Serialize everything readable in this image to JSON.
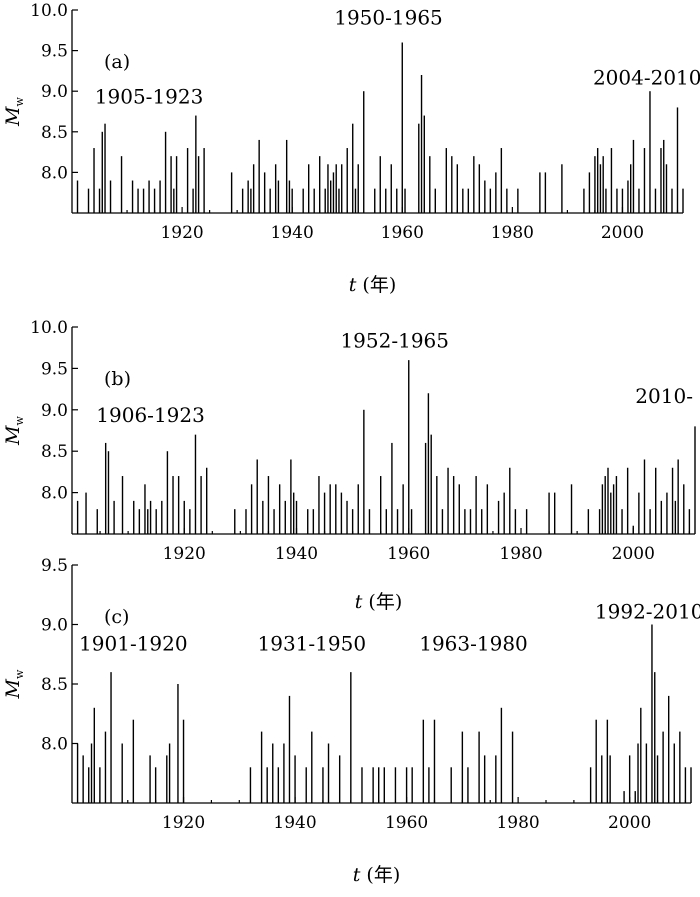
{
  "chart_data": [
    {
      "type": "bar",
      "panel_label": "(a)",
      "ylabel": "Mw",
      "ylabel_main": "M",
      "ylabel_sub": "w",
      "xlabel": "t (年)",
      "xlabel_var": "t",
      "xlabel_unit": " (年)",
      "xlim": [
        1900,
        2011
      ],
      "ylim": [
        7.5,
        10.0
      ],
      "x_ticks": [
        1920,
        1940,
        1960,
        1980,
        2000
      ],
      "y_ticks": [
        8.0,
        8.5,
        9.0,
        9.5,
        10.0
      ],
      "annotations": [
        {
          "text": "1905-1923",
          "x": 1914,
          "y": 8.85
        },
        {
          "text": "1950-1965",
          "x": 1957.5,
          "y": 9.82
        },
        {
          "text": "2004-2010",
          "x": 2004.5,
          "y": 9.08
        }
      ],
      "x": [
        1901,
        1903,
        1904,
        1905,
        1905.5,
        1906,
        1907,
        1909,
        1911,
        1912,
        1913,
        1914,
        1915,
        1916,
        1917,
        1918,
        1918.5,
        1919,
        1921,
        1922,
        1922.5,
        1923,
        1924,
        1929,
        1931,
        1932,
        1932.5,
        1933,
        1934,
        1935,
        1936,
        1937,
        1937.5,
        1939,
        1939.5,
        1940,
        1942,
        1943,
        1944,
        1945,
        1946,
        1946.5,
        1947,
        1947.5,
        1948,
        1948.5,
        1949,
        1950,
        1951,
        1951.5,
        1952,
        1953,
        1955,
        1956,
        1957,
        1958,
        1959,
        1960,
        1960.5,
        1963,
        1963.5,
        1964,
        1965,
        1966,
        1968,
        1969,
        1970,
        1971,
        1972,
        1973,
        1974,
        1975,
        1976,
        1977,
        1978,
        1979,
        1981,
        1985,
        1986,
        1989,
        1993,
        1994,
        1995,
        1995.5,
        1996,
        1996.5,
        1997,
        1998,
        1999,
        2000,
        2001,
        2001.5,
        2002,
        2003,
        2004,
        2005,
        2006,
        2007,
        2007.5,
        2008,
        2009,
        2010,
        2011
      ],
      "values": [
        7.9,
        7.8,
        8.3,
        7.8,
        8.5,
        8.6,
        7.9,
        8.2,
        7.9,
        7.8,
        7.8,
        7.9,
        7.8,
        7.9,
        8.5,
        8.2,
        7.8,
        8.2,
        8.3,
        7.8,
        8.7,
        8.2,
        8.3,
        8.0,
        7.8,
        7.9,
        7.8,
        8.1,
        8.4,
        8.0,
        7.8,
        8.1,
        7.9,
        8.4,
        7.9,
        7.8,
        7.8,
        8.1,
        7.8,
        8.2,
        7.8,
        8.1,
        7.9,
        8.0,
        8.1,
        7.8,
        8.1,
        8.3,
        8.6,
        7.8,
        8.1,
        9.0,
        7.8,
        8.2,
        7.8,
        8.1,
        7.8,
        9.6,
        7.8,
        8.6,
        9.2,
        8.7,
        8.2,
        7.8,
        8.3,
        8.2,
        8.1,
        7.8,
        7.8,
        8.2,
        8.1,
        7.9,
        7.8,
        8.0,
        8.3,
        7.8,
        7.8,
        8.0,
        8.0,
        8.1,
        7.8,
        8.0,
        8.2,
        8.3,
        8.1,
        8.2,
        7.8,
        8.3,
        7.8,
        7.8,
        7.9,
        8.1,
        8.4,
        7.8,
        8.3,
        9.0,
        7.8,
        8.3,
        8.4,
        8.1,
        7.8,
        8.8,
        7.8
      ]
    },
    {
      "type": "bar",
      "panel_label": "(b)",
      "ylabel": "Mw",
      "ylabel_main": "M",
      "ylabel_sub": "w",
      "xlabel": "t (年)",
      "xlabel_var": "t",
      "xlabel_unit": " (年)",
      "xlim": [
        1900,
        2011
      ],
      "ylim": [
        7.5,
        10.0
      ],
      "x_ticks": [
        1920,
        1940,
        1960,
        1980,
        2000
      ],
      "y_ticks": [
        8.0,
        8.5,
        9.0,
        9.5,
        10.0
      ],
      "annotations": [
        {
          "text": "1906-1923",
          "x": 1914,
          "y": 8.85
        },
        {
          "text": "1952-1965",
          "x": 1957.5,
          "y": 9.75
        },
        {
          "text": "2010-",
          "x": 2005.5,
          "y": 9.08
        }
      ],
      "x": [
        1901,
        1902.5,
        1904.5,
        1906,
        1906.5,
        1907.5,
        1909,
        1911,
        1912,
        1913,
        1913.5,
        1914,
        1915,
        1916,
        1917,
        1918,
        1919,
        1920,
        1921,
        1922,
        1923,
        1924,
        1929,
        1931,
        1932,
        1933,
        1934,
        1935,
        1936,
        1937,
        1938,
        1939,
        1939.5,
        1940,
        1942,
        1943,
        1944,
        1945,
        1946,
        1947,
        1948,
        1949,
        1950,
        1951,
        1952,
        1953,
        1955,
        1956,
        1957,
        1958,
        1959,
        1960,
        1960.5,
        1963,
        1963.5,
        1964,
        1965,
        1966,
        1967,
        1968,
        1969,
        1970,
        1971,
        1972,
        1973,
        1974,
        1976,
        1977,
        1978,
        1979,
        1981,
        1985,
        1986,
        1989,
        1992,
        1994,
        1994.5,
        1995,
        1995.5,
        1996,
        1996.5,
        1997,
        1998,
        1999,
        2000,
        2001,
        2002,
        2003,
        2004,
        2005,
        2006,
        2007,
        2007.5,
        2008,
        2009,
        2010,
        2011
      ],
      "values": [
        7.9,
        8.0,
        7.8,
        8.6,
        8.5,
        7.9,
        8.2,
        7.9,
        7.8,
        8.1,
        7.8,
        7.9,
        7.8,
        7.9,
        8.5,
        8.2,
        8.2,
        7.9,
        7.8,
        8.7,
        8.2,
        8.3,
        7.8,
        7.8,
        8.1,
        8.4,
        7.9,
        8.2,
        7.8,
        8.1,
        7.9,
        8.4,
        8.0,
        7.9,
        7.8,
        7.8,
        8.2,
        8.0,
        8.1,
        8.1,
        8.0,
        7.9,
        7.8,
        8.1,
        9.0,
        7.8,
        8.2,
        7.8,
        8.6,
        7.8,
        8.1,
        9.6,
        7.8,
        8.6,
        9.2,
        8.7,
        8.2,
        7.8,
        8.3,
        8.2,
        8.1,
        7.8,
        7.8,
        8.2,
        7.8,
        8.1,
        7.9,
        8.0,
        8.3,
        7.8,
        7.8,
        8.0,
        8.0,
        8.1,
        7.8,
        7.8,
        8.1,
        8.2,
        8.3,
        8.0,
        8.1,
        8.2,
        7.8,
        8.3,
        7.6,
        8.0,
        8.4,
        7.8,
        8.3,
        7.9,
        8.0,
        8.3,
        7.9,
        8.4,
        8.1,
        7.8,
        8.8
      ]
    },
    {
      "type": "bar",
      "panel_label": "(c)",
      "ylabel": "Mw",
      "ylabel_main": "M",
      "ylabel_sub": "w",
      "xlabel": "t (年)",
      "xlabel_var": "t",
      "xlabel_unit": " (年)",
      "xlim": [
        1900,
        2011
      ],
      "ylim": [
        7.5,
        9.5
      ],
      "x_ticks": [
        1920,
        1940,
        1960,
        1980,
        2000
      ],
      "y_ticks": [
        8.0,
        8.5,
        9.0,
        9.5
      ],
      "annotations": [
        {
          "text": "1901-1920",
          "x": 1911,
          "y": 8.78
        },
        {
          "text": "1931-1950",
          "x": 1943,
          "y": 8.78
        },
        {
          "text": "1963-1980",
          "x": 1972,
          "y": 8.78
        },
        {
          "text": "1992-2010",
          "x": 2003.5,
          "y": 9.05
        }
      ],
      "x": [
        1901,
        1902,
        1903,
        1903.5,
        1904,
        1905,
        1906,
        1907,
        1909,
        1911,
        1914,
        1915,
        1917,
        1917.5,
        1919,
        1920,
        1932,
        1934,
        1935,
        1936,
        1937,
        1938,
        1939,
        1940,
        1942,
        1943,
        1945,
        1946,
        1948,
        1950,
        1952,
        1954,
        1955,
        1956,
        1958,
        1960,
        1961,
        1963,
        1964,
        1965,
        1968,
        1970,
        1971,
        1973,
        1974,
        1976,
        1977,
        1979,
        1993,
        1994,
        1995,
        1996,
        1996.5,
        1999,
        2000,
        2001,
        2001.5,
        2002,
        2003,
        2004,
        2004.5,
        2005,
        2006,
        2007,
        2008,
        2009,
        2010,
        2011
      ],
      "values": [
        8.0,
        7.9,
        7.8,
        8.0,
        8.3,
        7.8,
        8.1,
        8.6,
        8.0,
        8.2,
        7.9,
        7.8,
        7.9,
        8.0,
        8.5,
        8.2,
        7.8,
        8.1,
        7.8,
        8.0,
        7.8,
        8.0,
        8.4,
        7.9,
        7.8,
        8.1,
        7.8,
        8.0,
        7.9,
        8.6,
        7.8,
        7.8,
        7.8,
        7.8,
        7.8,
        7.8,
        7.8,
        8.2,
        7.8,
        8.2,
        7.8,
        8.1,
        7.8,
        8.1,
        7.9,
        7.9,
        8.3,
        8.1,
        7.8,
        8.2,
        7.9,
        8.2,
        7.9,
        7.6,
        7.9,
        7.6,
        8.0,
        8.3,
        8.0,
        9.0,
        8.6,
        7.9,
        8.1,
        8.4,
        8.0,
        8.1,
        7.8,
        7.8
      ]
    }
  ]
}
